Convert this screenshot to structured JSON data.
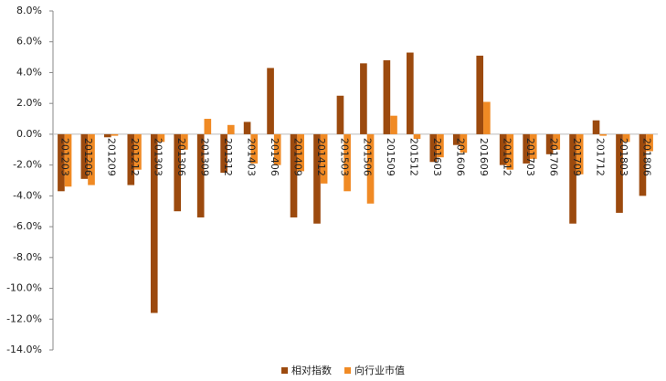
{
  "chart_data": {
    "type": "bar",
    "categories": [
      "201203",
      "201206",
      "201209",
      "201212",
      "201303",
      "201306",
      "201309",
      "201312",
      "201403",
      "201406",
      "201409",
      "201412",
      "201503",
      "201506",
      "201509",
      "201512",
      "201603",
      "201606",
      "201609",
      "201612",
      "201703",
      "201706",
      "201709",
      "201712",
      "201803",
      "201806"
    ],
    "series": [
      {
        "name": "相对指数",
        "color": "#9c4a0e",
        "values": [
          -3.7,
          -2.9,
          -0.2,
          -3.3,
          -11.6,
          -5.0,
          -5.4,
          -2.5,
          0.8,
          4.3,
          -5.4,
          -5.8,
          2.5,
          4.6,
          4.8,
          5.3,
          -1.8,
          -0.7,
          5.1,
          -2.0,
          -1.9,
          -1.3,
          -5.8,
          0.9,
          -5.1,
          -4.0
        ]
      },
      {
        "name": "向行业市值",
        "color": "#f08a24",
        "values": [
          -3.4,
          -3.3,
          -0.1,
          -2.3,
          -0.5,
          -1.0,
          1.0,
          0.6,
          -1.9,
          -2.0,
          -2.4,
          -3.2,
          -3.7,
          -4.5,
          1.2,
          -0.3,
          -1.5,
          -1.2,
          2.1,
          -2.3,
          -1.6,
          -1.0,
          -2.6,
          -0.1,
          -0.5,
          -1.1
        ]
      }
    ],
    "ylim": [
      -14,
      8
    ],
    "yticks": [
      {
        "value": -14,
        "label": "-14.0%"
      },
      {
        "value": -12,
        "label": "-12.0%"
      },
      {
        "value": -10,
        "label": "-10.0%"
      },
      {
        "value": -8,
        "label": "-8.0%"
      },
      {
        "value": -6,
        "label": "-6.0%"
      },
      {
        "value": -4,
        "label": "-4.0%"
      },
      {
        "value": -2,
        "label": "-2.0%"
      },
      {
        "value": 0,
        "label": "0.0%"
      },
      {
        "value": 2,
        "label": "2.0%"
      },
      {
        "value": 4,
        "label": "4.0%"
      },
      {
        "value": 6,
        "label": "6.0%"
      },
      {
        "value": 8,
        "label": "8.0%"
      }
    ],
    "grid": false,
    "legend": "bottom"
  }
}
